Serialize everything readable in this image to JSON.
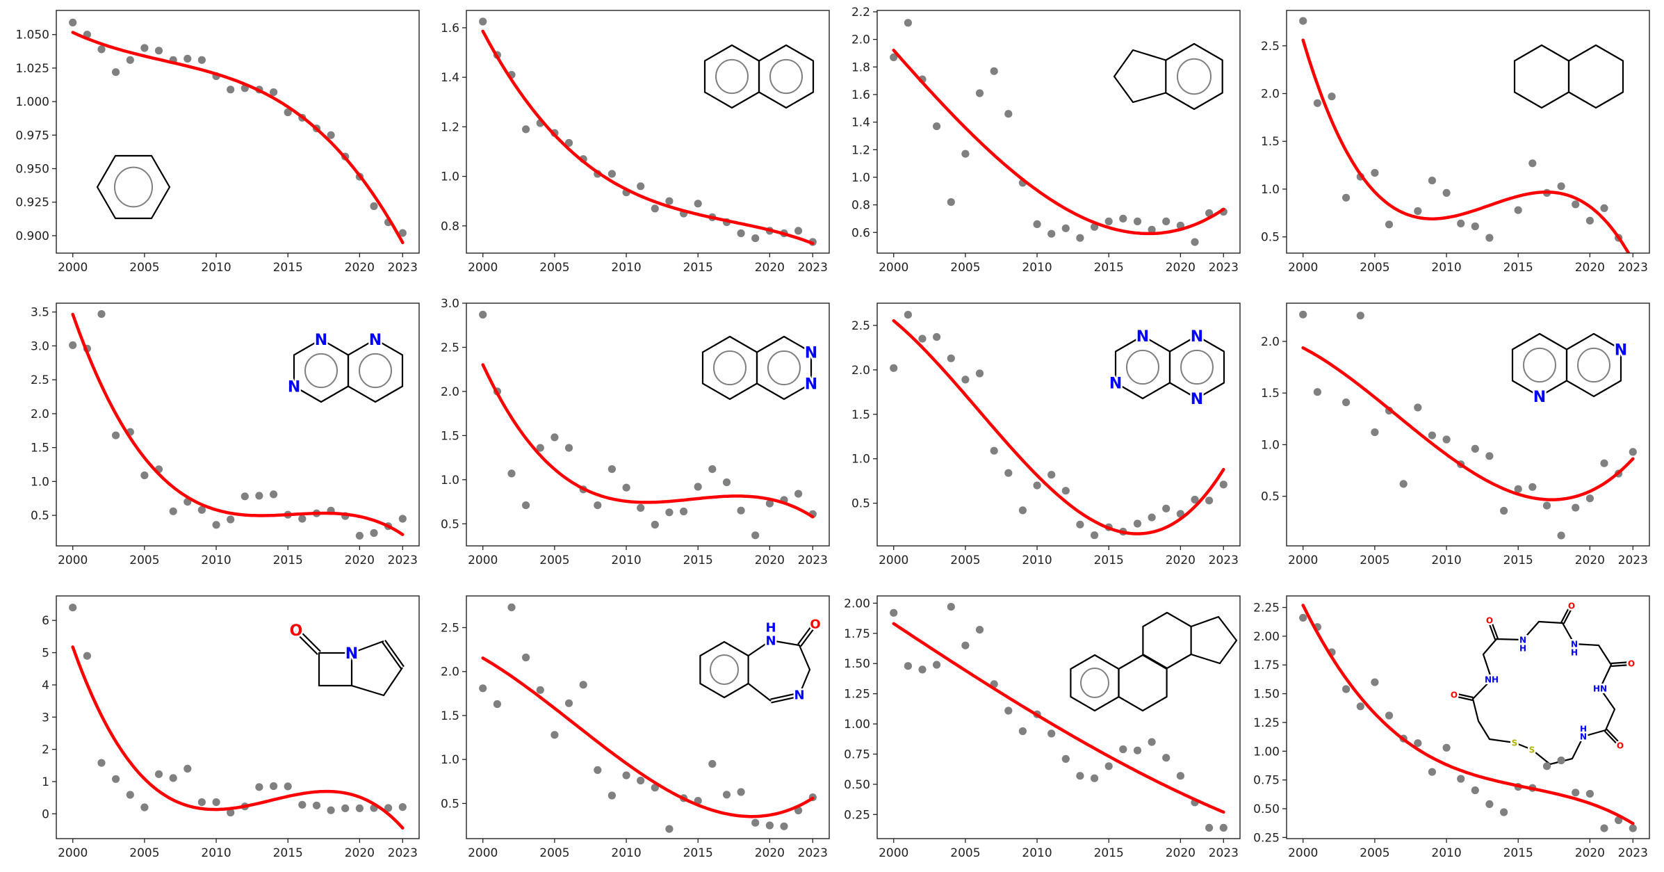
{
  "point_color": "#808080",
  "trend_color": "#ff0000",
  "atom_colors": {
    "N": "#0000ff",
    "H": "#0000ff",
    "O": "#ff0000",
    "S": "#b2b200"
  },
  "chart_data": [
    {
      "type": "scatter",
      "x": [
        2000,
        2001,
        2002,
        2003,
        2004,
        2005,
        2006,
        2007,
        2008,
        2009,
        2010,
        2011,
        2012,
        2013,
        2014,
        2015,
        2016,
        2017,
        2018,
        2019,
        2020,
        2021,
        2022,
        2023
      ],
      "values": [
        1.059,
        1.05,
        1.039,
        1.022,
        1.031,
        1.04,
        1.038,
        1.031,
        1.032,
        1.031,
        1.019,
        1.009,
        1.01,
        1.009,
        1.007,
        0.992,
        0.988,
        0.98,
        0.975,
        0.959,
        0.944,
        0.922,
        0.91,
        0.902
      ],
      "ylim": [
        0.887,
        1.068
      ],
      "yticks": [
        0.9,
        0.925,
        0.95,
        0.975,
        1.0,
        1.025,
        1.05
      ],
      "ytick_labels": [
        "0.900",
        "0.925",
        "0.950",
        "0.975",
        "1.000",
        "1.025",
        "1.050"
      ],
      "xticks": [
        2000,
        2005,
        2010,
        2015,
        2020,
        2023
      ],
      "xtick_labels": [
        "2000",
        "2005",
        "2010",
        "2015",
        "2020",
        "2023"
      ],
      "trend_line": "cubic",
      "molecule_labels": []
    },
    {
      "type": "scatter",
      "x": [
        2000,
        2001,
        2002,
        2003,
        2004,
        2005,
        2006,
        2007,
        2008,
        2009,
        2010,
        2011,
        2012,
        2013,
        2014,
        2015,
        2016,
        2017,
        2018,
        2019,
        2020,
        2021,
        2022,
        2023
      ],
      "values": [
        1.625,
        1.49,
        1.41,
        1.19,
        1.215,
        1.175,
        1.135,
        1.07,
        1.01,
        1.01,
        0.935,
        0.96,
        0.87,
        0.9,
        0.85,
        0.89,
        0.835,
        0.815,
        0.77,
        0.75,
        0.78,
        0.77,
        0.78,
        0.735
      ],
      "ylim": [
        0.69,
        1.67
      ],
      "yticks": [
        0.8,
        1.0,
        1.2,
        1.4,
        1.6
      ],
      "ytick_labels": [
        "0.8",
        "1.0",
        "1.2",
        "1.4",
        "1.6"
      ],
      "xticks": [
        2000,
        2005,
        2010,
        2015,
        2020,
        2023
      ],
      "xtick_labels": [
        "2000",
        "2005",
        "2010",
        "2015",
        "2020",
        "2023"
      ],
      "trend_line": "cubic",
      "molecule_labels": []
    },
    {
      "type": "scatter",
      "x": [
        2000,
        2001,
        2002,
        2003,
        2004,
        2005,
        2006,
        2007,
        2008,
        2009,
        2010,
        2011,
        2012,
        2013,
        2014,
        2015,
        2016,
        2017,
        2018,
        2019,
        2020,
        2021,
        2022,
        2023
      ],
      "values": [
        1.87,
        2.12,
        1.71,
        1.37,
        0.82,
        1.17,
        1.61,
        1.77,
        1.46,
        0.96,
        0.66,
        0.59,
        0.63,
        0.56,
        0.64,
        0.68,
        0.7,
        0.68,
        0.62,
        0.68,
        0.65,
        0.53,
        0.74,
        0.75
      ],
      "ylim": [
        0.45,
        2.21
      ],
      "yticks": [
        0.6,
        0.8,
        1.0,
        1.2,
        1.4,
        1.6,
        1.8,
        2.0,
        2.2
      ],
      "ytick_labels": [
        "0.6",
        "0.8",
        "1.0",
        "1.2",
        "1.4",
        "1.6",
        "1.8",
        "2.0",
        "2.2"
      ],
      "xticks": [
        2000,
        2005,
        2010,
        2015,
        2020,
        2023
      ],
      "xtick_labels": [
        "2000",
        "2005",
        "2010",
        "2015",
        "2020",
        "2023"
      ],
      "trend_line": "cubic",
      "molecule_labels": []
    },
    {
      "type": "scatter",
      "x": [
        2000,
        2001,
        2002,
        2003,
        2004,
        2005,
        2006,
        2007,
        2008,
        2009,
        2010,
        2011,
        2012,
        2013,
        2014,
        2015,
        2016,
        2017,
        2018,
        2019,
        2020,
        2021,
        2022,
        2023
      ],
      "values": [
        2.76,
        1.9,
        1.97,
        0.91,
        1.13,
        1.17,
        0.63,
        null,
        0.77,
        1.09,
        0.96,
        0.64,
        0.61,
        0.49,
        null,
        0.78,
        1.27,
        0.96,
        1.03,
        0.84,
        0.67,
        0.8,
        0.49,
        null
      ],
      "ylim": [
        0.33,
        2.87
      ],
      "yticks": [
        0.5,
        1.0,
        1.5,
        2.0,
        2.5
      ],
      "ytick_labels": [
        "0.5",
        "1.0",
        "1.5",
        "2.0",
        "2.5"
      ],
      "xticks": [
        2000,
        2005,
        2010,
        2015,
        2020,
        2023
      ],
      "xtick_labels": [
        "2000",
        "2005",
        "2010",
        "2015",
        "2020",
        "2023"
      ],
      "trend_line": "cubic",
      "molecule_labels": []
    },
    {
      "type": "scatter",
      "x": [
        2000,
        2001,
        2002,
        2003,
        2004,
        2005,
        2006,
        2007,
        2008,
        2009,
        2010,
        2011,
        2012,
        2013,
        2014,
        2015,
        2016,
        2017,
        2018,
        2019,
        2020,
        2021,
        2022,
        2023
      ],
      "values": [
        3.01,
        2.96,
        3.47,
        1.68,
        1.73,
        1.09,
        1.18,
        0.56,
        0.7,
        0.58,
        0.36,
        0.44,
        0.78,
        0.79,
        0.81,
        0.51,
        0.45,
        0.53,
        0.57,
        0.49,
        0.2,
        0.24,
        0.34,
        0.45
      ],
      "ylim": [
        0.05,
        3.63
      ],
      "yticks": [
        0.5,
        1.0,
        1.5,
        2.0,
        2.5,
        3.0,
        3.5
      ],
      "ytick_labels": [
        "0.5",
        "1.0",
        "1.5",
        "2.0",
        "2.5",
        "3.0",
        "3.5"
      ],
      "xticks": [
        2000,
        2005,
        2010,
        2015,
        2020,
        2023
      ],
      "xtick_labels": [
        "2000",
        "2005",
        "2010",
        "2015",
        "2020",
        "2023"
      ],
      "trend_line": "cubic",
      "molecule_labels": [
        "N",
        "N",
        "N"
      ]
    },
    {
      "type": "scatter",
      "x": [
        2000,
        2001,
        2002,
        2003,
        2004,
        2005,
        2006,
        2007,
        2008,
        2009,
        2010,
        2011,
        2012,
        2013,
        2014,
        2015,
        2016,
        2017,
        2018,
        2019,
        2020,
        2021,
        2022,
        2023
      ],
      "values": [
        2.87,
        2.0,
        1.07,
        0.71,
        1.36,
        1.48,
        1.36,
        0.89,
        0.71,
        1.12,
        0.91,
        0.68,
        0.49,
        0.63,
        0.64,
        0.92,
        1.12,
        0.97,
        0.65,
        0.37,
        0.73,
        0.77,
        0.84,
        0.61
      ],
      "ylim": [
        0.25,
        3.0
      ],
      "yticks": [
        0.5,
        1.0,
        1.5,
        2.0,
        2.5,
        3.0
      ],
      "ytick_labels": [
        "0.5",
        "1.0",
        "1.5",
        "2.0",
        "2.5",
        "3.0"
      ],
      "xticks": [
        2000,
        2005,
        2010,
        2015,
        2020,
        2023
      ],
      "xtick_labels": [
        "2000",
        "2005",
        "2010",
        "2015",
        "2020",
        "2023"
      ],
      "trend_line": "cubic",
      "molecule_labels": [
        "N",
        "N"
      ]
    },
    {
      "type": "scatter",
      "x": [
        2000,
        2001,
        2002,
        2003,
        2004,
        2005,
        2006,
        2007,
        2008,
        2009,
        2010,
        2011,
        2012,
        2013,
        2014,
        2015,
        2016,
        2017,
        2018,
        2019,
        2020,
        2021,
        2022,
        2023
      ],
      "values": [
        2.02,
        2.62,
        2.35,
        2.37,
        2.13,
        1.89,
        1.96,
        1.09,
        0.84,
        0.42,
        0.7,
        0.82,
        0.64,
        0.26,
        0.14,
        0.23,
        0.18,
        0.27,
        0.34,
        0.44,
        0.38,
        0.54,
        0.53,
        0.71
      ],
      "ylim": [
        0.02,
        2.75
      ],
      "yticks": [
        0.5,
        1.0,
        1.5,
        2.0,
        2.5
      ],
      "ytick_labels": [
        "0.5",
        "1.0",
        "1.5",
        "2.0",
        "2.5"
      ],
      "xticks": [
        2000,
        2005,
        2010,
        2015,
        2020,
        2023
      ],
      "xtick_labels": [
        "2000",
        "2005",
        "2010",
        "2015",
        "2020",
        "2023"
      ],
      "trend_line": "cubic",
      "molecule_labels": [
        "N",
        "N",
        "N",
        "N"
      ]
    },
    {
      "type": "scatter",
      "x": [
        2000,
        2001,
        2002,
        2003,
        2004,
        2005,
        2006,
        2007,
        2008,
        2009,
        2010,
        2011,
        2012,
        2013,
        2014,
        2015,
        2016,
        2017,
        2018,
        2019,
        2020,
        2021,
        2022,
        2023
      ],
      "values": [
        2.26,
        1.51,
        null,
        1.41,
        2.25,
        1.12,
        1.33,
        0.62,
        1.36,
        1.09,
        1.05,
        0.81,
        0.96,
        0.89,
        0.36,
        0.57,
        0.59,
        0.41,
        0.12,
        0.39,
        0.48,
        0.82,
        0.72,
        0.93
      ],
      "ylim": [
        0.02,
        2.37
      ],
      "yticks": [
        0.5,
        1.0,
        1.5,
        2.0
      ],
      "ytick_labels": [
        "0.5",
        "1.0",
        "1.5",
        "2.0"
      ],
      "xticks": [
        2000,
        2005,
        2010,
        2015,
        2020,
        2023
      ],
      "xtick_labels": [
        "2000",
        "2005",
        "2010",
        "2015",
        "2020",
        "2023"
      ],
      "trend_line": "cubic",
      "molecule_labels": [
        "N",
        "N"
      ]
    },
    {
      "type": "scatter",
      "x": [
        2000,
        2001,
        2002,
        2003,
        2004,
        2005,
        2006,
        2007,
        2008,
        2009,
        2010,
        2011,
        2012,
        2013,
        2014,
        2015,
        2016,
        2017,
        2018,
        2019,
        2020,
        2021,
        2022,
        2023
      ],
      "values": [
        6.4,
        4.9,
        1.58,
        1.08,
        0.59,
        0.2,
        1.23,
        1.11,
        1.4,
        0.36,
        0.36,
        0.04,
        0.23,
        0.83,
        0.86,
        0.85,
        0.28,
        0.26,
        0.11,
        0.17,
        0.17,
        0.18,
        0.18,
        0.21
      ],
      "ylim": [
        -0.77,
        6.76
      ],
      "yticks": [
        0,
        1,
        2,
        3,
        4,
        5,
        6
      ],
      "ytick_labels": [
        "0",
        "1",
        "2",
        "3",
        "4",
        "5",
        "6"
      ],
      "xticks": [
        2000,
        2005,
        2010,
        2015,
        2020,
        2023
      ],
      "xtick_labels": [
        "2000",
        "2005",
        "2010",
        "2015",
        "2020",
        "2023"
      ],
      "trend_line": "cubic",
      "molecule_labels": [
        "O",
        "N"
      ]
    },
    {
      "type": "scatter",
      "x": [
        2000,
        2001,
        2002,
        2003,
        2004,
        2005,
        2006,
        2007,
        2008,
        2009,
        2010,
        2011,
        2012,
        2013,
        2014,
        2015,
        2016,
        2017,
        2018,
        2019,
        2020,
        2021,
        2022,
        2023
      ],
      "values": [
        1.81,
        1.63,
        2.73,
        2.16,
        1.79,
        1.28,
        1.64,
        1.85,
        0.88,
        0.59,
        0.82,
        0.76,
        0.68,
        0.21,
        0.56,
        0.53,
        0.95,
        0.6,
        0.63,
        0.28,
        0.25,
        0.24,
        0.42,
        0.57
      ],
      "ylim": [
        0.1,
        2.86
      ],
      "yticks": [
        0.5,
        1.0,
        1.5,
        2.0,
        2.5
      ],
      "ytick_labels": [
        "0.5",
        "1.0",
        "1.5",
        "2.0",
        "2.5"
      ],
      "xticks": [
        2000,
        2005,
        2010,
        2015,
        2020,
        2023
      ],
      "xtick_labels": [
        "2000",
        "2005",
        "2010",
        "2015",
        "2020",
        "2023"
      ],
      "trend_line": "cubic",
      "molecule_labels": [
        "H",
        "N",
        "O",
        "N"
      ]
    },
    {
      "type": "scatter",
      "x": [
        2000,
        2001,
        2002,
        2003,
        2004,
        2005,
        2006,
        2007,
        2008,
        2009,
        2010,
        2011,
        2012,
        2013,
        2014,
        2015,
        2016,
        2017,
        2018,
        2019,
        2020,
        2021,
        2022,
        2023
      ],
      "values": [
        1.92,
        1.48,
        1.45,
        1.49,
        1.97,
        1.65,
        1.78,
        1.33,
        1.11,
        0.94,
        1.08,
        0.92,
        0.71,
        0.57,
        0.55,
        0.65,
        0.79,
        0.78,
        0.85,
        0.72,
        0.57,
        0.35,
        0.14,
        0.14
      ],
      "ylim": [
        0.05,
        2.06
      ],
      "yticks": [
        0.25,
        0.5,
        0.75,
        1.0,
        1.25,
        1.5,
        1.75,
        2.0
      ],
      "ytick_labels": [
        "0.25",
        "0.50",
        "0.75",
        "1.00",
        "1.25",
        "1.50",
        "1.75",
        "2.00"
      ],
      "xticks": [
        2000,
        2005,
        2010,
        2015,
        2020,
        2023
      ],
      "xtick_labels": [
        "2000",
        "2005",
        "2010",
        "2015",
        "2020",
        "2023"
      ],
      "trend_line": "cubic",
      "molecule_labels": []
    },
    {
      "type": "scatter",
      "x": [
        2000,
        2001,
        2002,
        2003,
        2004,
        2005,
        2006,
        2007,
        2008,
        2009,
        2010,
        2011,
        2012,
        2013,
        2014,
        2015,
        2016,
        2017,
        2018,
        2019,
        2020,
        2021,
        2022,
        2023
      ],
      "values": [
        2.16,
        2.08,
        1.86,
        1.54,
        1.39,
        1.6,
        1.31,
        1.11,
        1.07,
        0.82,
        1.03,
        0.76,
        0.66,
        0.54,
        0.47,
        0.69,
        0.68,
        0.87,
        0.92,
        0.64,
        0.63,
        0.33,
        0.4,
        0.33
      ],
      "ylim": [
        0.24,
        2.35
      ],
      "yticks": [
        0.25,
        0.5,
        0.75,
        1.0,
        1.25,
        1.5,
        1.75,
        2.0,
        2.25
      ],
      "ytick_labels": [
        "0.25",
        "0.50",
        "0.75",
        "1.00",
        "1.25",
        "1.50",
        "1.75",
        "2.00",
        "2.25"
      ],
      "xticks": [
        2000,
        2005,
        2010,
        2015,
        2020,
        2023
      ],
      "xtick_labels": [
        "2000",
        "2005",
        "2010",
        "2015",
        "2020",
        "2023"
      ],
      "trend_line": "cubic",
      "molecule_labels": [
        "O",
        "N",
        "H",
        "O",
        "N",
        "H",
        "O",
        "HN",
        "H",
        "N",
        "O",
        "S",
        "S",
        "O",
        "NH"
      ]
    }
  ]
}
